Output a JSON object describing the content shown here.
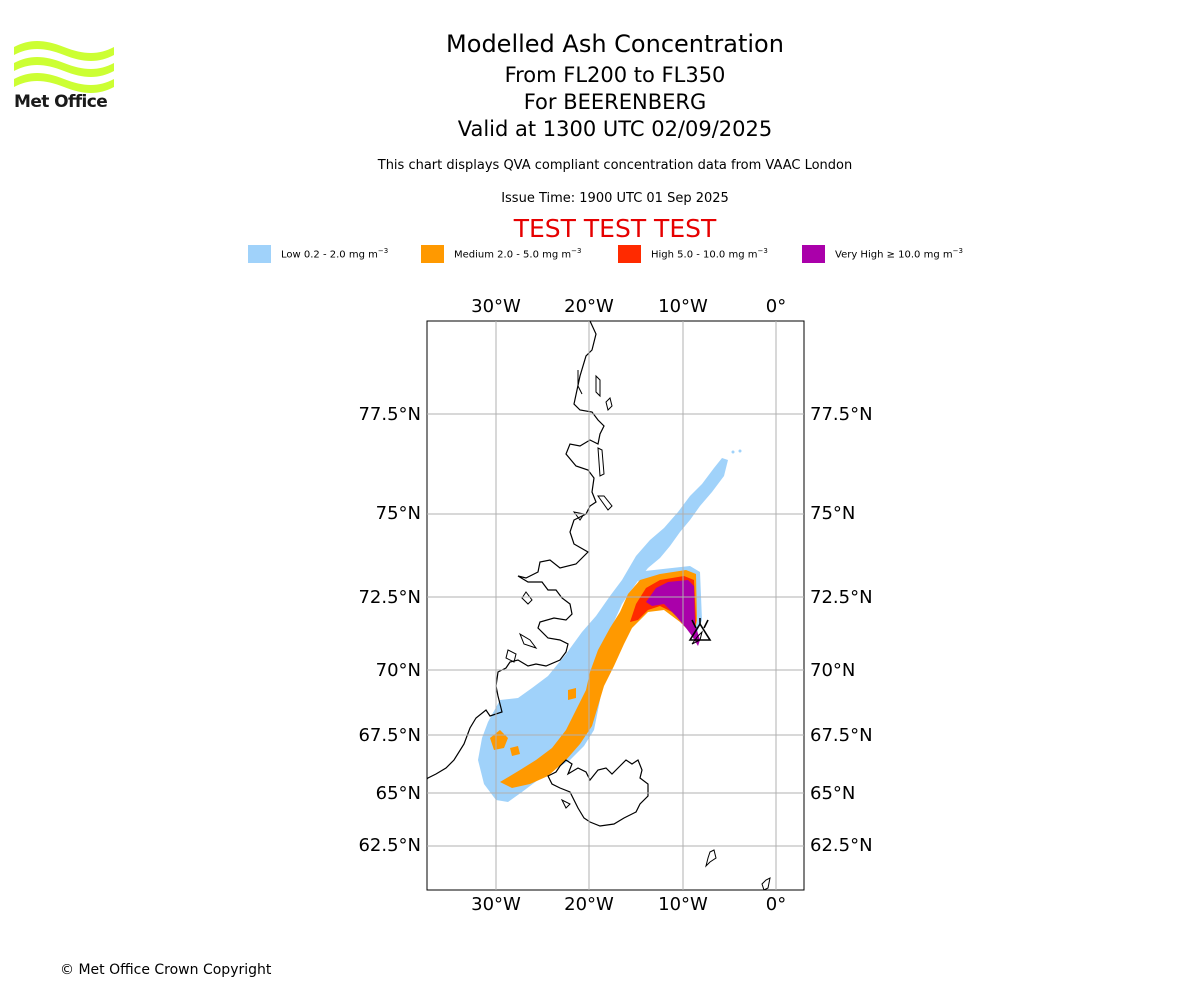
{
  "logo": {
    "text": "Met Office",
    "color": "#ccff33"
  },
  "header": {
    "title": "Modelled Ash Concentration",
    "levels": "From FL200 to FL350",
    "volcano": "For BEERENBERG",
    "valid": "Valid at 1300 UTC 02/09/2025",
    "description": "This chart displays QVA compliant concentration data from VAAC London",
    "issue_time": "Issue Time: 1900 UTC 01 Sep 2025",
    "test_banner": "TEST TEST TEST"
  },
  "legend": [
    {
      "label": "Low 0.2 - 2.0 mg m",
      "exp": "−3",
      "color": "#a0d2fa"
    },
    {
      "label": "Medium 2.0 - 5.0 mg m",
      "exp": "−3",
      "color": "#ff9900"
    },
    {
      "label": "High 5.0 - 10.0 mg m",
      "exp": "−3",
      "color": "#ff2a00"
    },
    {
      "label": "Very High ≥ 10.0 mg m",
      "exp": "−3",
      "color": "#aa00aa"
    }
  ],
  "map": {
    "lon_labels": [
      "30°W",
      "20°W",
      "10°W",
      "0°"
    ],
    "lat_labels": [
      "77.5°N",
      "75°N",
      "72.5°N",
      "70°N",
      "67.5°N",
      "65°N",
      "62.5°N"
    ],
    "volcano_icon": "volcano-icon"
  },
  "footer": {
    "copyright": "© Met Office Crown Copyright"
  }
}
